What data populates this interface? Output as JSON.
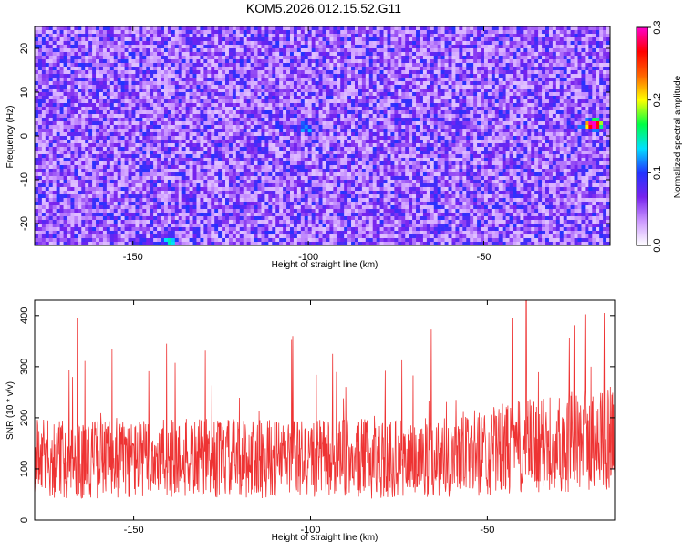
{
  "title": "KOM5.2026.012.15.52.G11",
  "chart_data": [
    {
      "type": "heatmap",
      "xlabel": "Height of straight line (km)",
      "ylabel": "Frequency (Hz)",
      "xlim": [
        -178,
        -14
      ],
      "ylim": [
        -25,
        25
      ],
      "xticks": [
        -150,
        -100,
        -50
      ],
      "yticks": [
        -20,
        -10,
        0,
        10,
        20
      ],
      "colorbar": {
        "label": "Normalized spectral amplitude",
        "range": [
          0.0,
          0.3
        ],
        "ticks": [
          "0.0",
          "0.1",
          "0.2",
          "0.3"
        ],
        "colors": [
          "#ffffff",
          "#cc99ff",
          "#7722ee",
          "#2233ff",
          "#00e0ff",
          "#00ff44",
          "#ffff00",
          "#ff6600",
          "#ff0000",
          "#ff00cc"
        ]
      },
      "background_level": 0.05,
      "hotspots": [
        {
          "x": -18,
          "y": 2.5,
          "amplitude": 0.27
        },
        {
          "x": -20,
          "y": 2.5,
          "amplitude": 0.14
        },
        {
          "x": -140,
          "y": -24,
          "amplitude": 0.1
        },
        {
          "x": -101,
          "y": 2,
          "amplitude": 0.09
        }
      ]
    },
    {
      "type": "line",
      "xlabel": "Height of straight line (km)",
      "ylabel": "SNR (10 * v/v)",
      "xlim": [
        -178,
        -14
      ],
      "ylim": [
        0,
        430
      ],
      "xticks": [
        -150,
        -100,
        -50
      ],
      "yticks": [
        0,
        100,
        200,
        300,
        400
      ],
      "color": "#ee3333",
      "baseline_mean": 120,
      "spikes": [
        {
          "x": -166,
          "y": 395
        },
        {
          "x": -39,
          "y": 430
        },
        {
          "x": -43,
          "y": 395
        },
        {
          "x": -17,
          "y": 405
        },
        {
          "x": -105,
          "y": 360
        }
      ]
    }
  ]
}
